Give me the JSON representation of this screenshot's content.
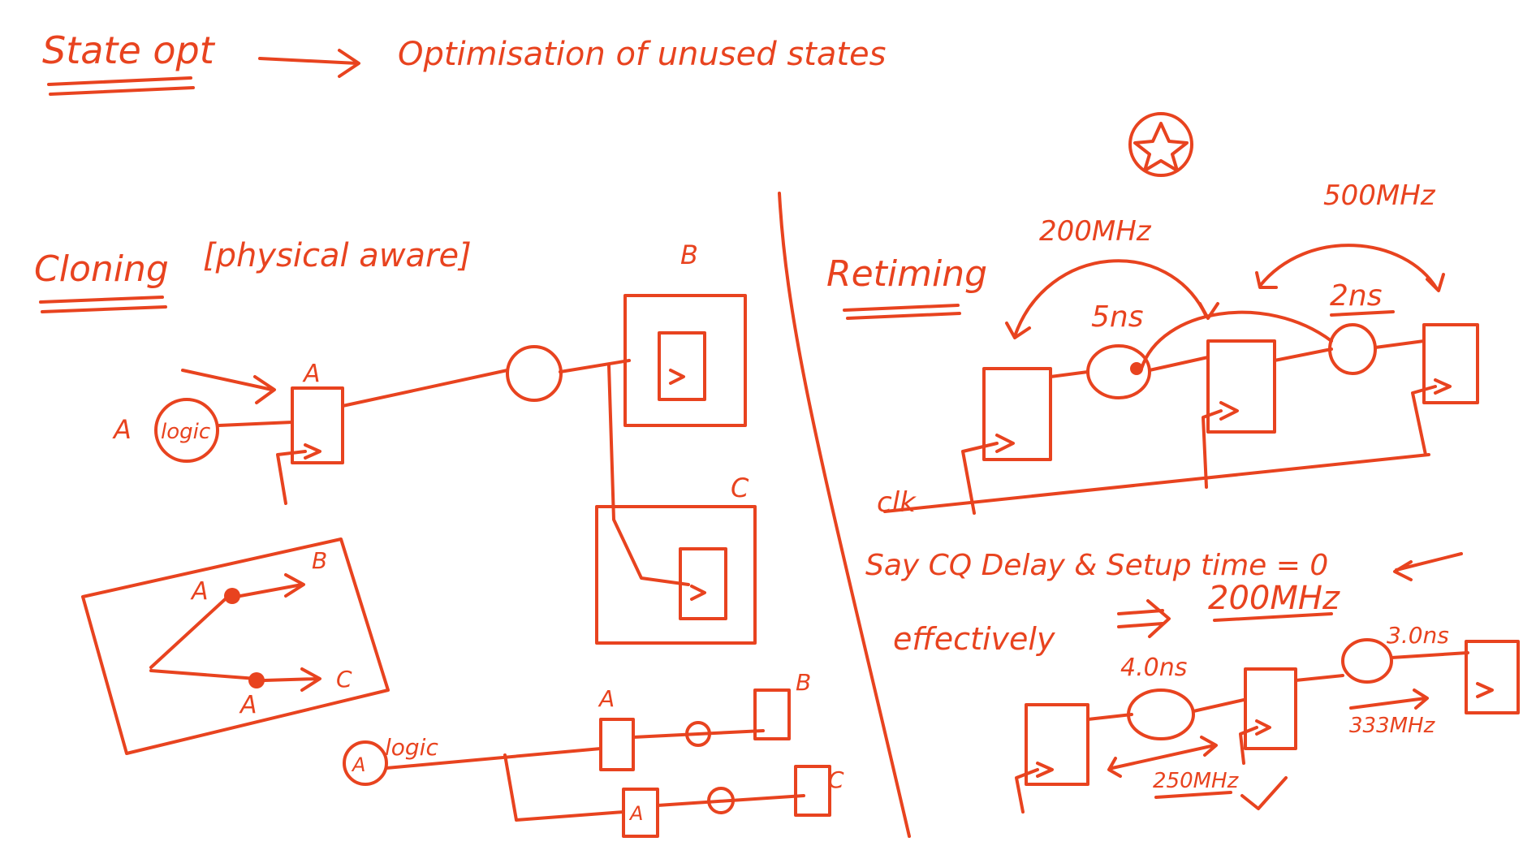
{
  "header": {
    "title": "State opt",
    "description": "Optimisation of unused states"
  },
  "cloning": {
    "title": "Cloning",
    "note": "[physical aware]",
    "label_a": "A",
    "label_b": "B",
    "label_c": "C",
    "logic_label": "logic",
    "input_label": "A"
  },
  "retiming": {
    "title": "Retiming",
    "freq_left": "200MHz",
    "freq_right": "500MHz",
    "delay_left": "5ns",
    "delay_right": "2ns",
    "clk_label": "clk",
    "note": "Say CQ Delay & Setup time = 0",
    "effectively_label": "effectively",
    "effective_freq": "200MHz",
    "delay_b1": "4.0ns",
    "delay_b2": "3.0ns",
    "freq_b1": "250MHz",
    "freq_b2": "333MHz"
  }
}
